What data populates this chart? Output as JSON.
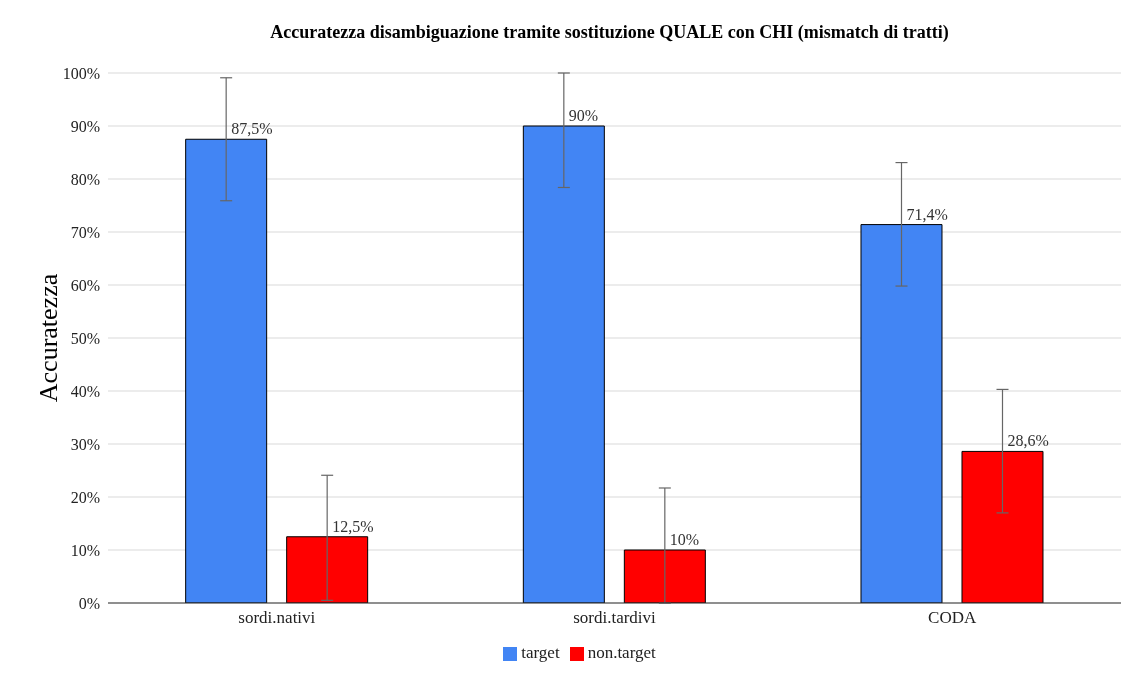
{
  "chart_data": {
    "type": "bar",
    "title": "Accuratezza disambiguazione tramite sostituzione QUALE con CHI (mismatch di tratti)",
    "ylabel": "Accuratezza",
    "categories": [
      "sordi.nativi",
      "sordi.tardivi",
      "CODA"
    ],
    "series": [
      {
        "name": "target",
        "color": "#4285f4",
        "values": [
          87.5,
          90,
          71.4
        ],
        "value_labels": [
          "87,5%",
          "90%",
          "71,4%"
        ],
        "errors": [
          [
            75.9,
            99.1
          ],
          [
            78.4,
            100
          ],
          [
            59.8,
            83.1
          ]
        ]
      },
      {
        "name": "non.target",
        "color": "#ff0000",
        "values": [
          12.5,
          10,
          28.6
        ],
        "value_labels": [
          "12,5%",
          "10%",
          "28,6%"
        ],
        "errors": [
          [
            0.5,
            24.1
          ],
          [
            0,
            21.7
          ],
          [
            17,
            40.3
          ]
        ]
      }
    ],
    "ylim": [
      0,
      100
    ],
    "yticks": [
      {
        "value": 0,
        "label": "0%"
      },
      {
        "value": 10,
        "label": "10%"
      },
      {
        "value": 20,
        "label": "20%"
      },
      {
        "value": 30,
        "label": "30%"
      },
      {
        "value": 40,
        "label": "40%"
      },
      {
        "value": 50,
        "label": "50%"
      },
      {
        "value": 60,
        "label": "60%"
      },
      {
        "value": 70,
        "label": "70%"
      },
      {
        "value": 80,
        "label": "80%"
      },
      {
        "value": 90,
        "label": "90%"
      },
      {
        "value": 100,
        "label": "100%"
      }
    ],
    "grid": "y",
    "legend": "bottom"
  }
}
